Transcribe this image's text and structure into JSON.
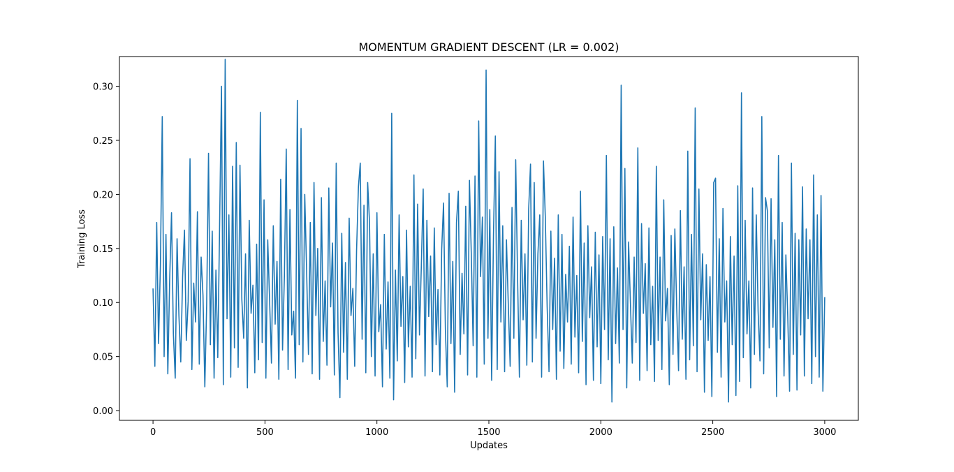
{
  "chart_data": {
    "type": "line",
    "title": "MOMENTUM GRADIENT DESCENT (LR = 0.002)",
    "xlabel": "Updates",
    "ylabel": "Training Loss",
    "xlim": [
      -150,
      3150
    ],
    "ylim": [
      -0.009,
      0.3275
    ],
    "xticks": [
      0,
      500,
      1000,
      1500,
      2000,
      2500,
      3000
    ],
    "xtick_labels": [
      "0",
      "500",
      "1000",
      "1500",
      "2000",
      "2500",
      "3000"
    ],
    "yticks": [
      0.0,
      0.05,
      0.1,
      0.15,
      0.2,
      0.25,
      0.3
    ],
    "ytick_labels": [
      "0.00",
      "0.05",
      "0.10",
      "0.15",
      "0.20",
      "0.25",
      "0.30"
    ],
    "grid": false,
    "legend": "none",
    "series": [
      {
        "color": "#1f77b4",
        "x_start": 0,
        "x_step": 10,
        "values": [
          0.113,
          0.041,
          0.174,
          0.062,
          0.135,
          0.272,
          0.05,
          0.163,
          0.034,
          0.121,
          0.183,
          0.071,
          0.03,
          0.159,
          0.088,
          0.045,
          0.124,
          0.167,
          0.065,
          0.101,
          0.233,
          0.038,
          0.118,
          0.082,
          0.184,
          0.043,
          0.142,
          0.107,
          0.022,
          0.098,
          0.238,
          0.061,
          0.166,
          0.03,
          0.13,
          0.049,
          0.173,
          0.3,
          0.024,
          0.325,
          0.085,
          0.181,
          0.031,
          0.226,
          0.058,
          0.248,
          0.04,
          0.227,
          0.103,
          0.067,
          0.145,
          0.021,
          0.176,
          0.09,
          0.116,
          0.035,
          0.154,
          0.047,
          0.276,
          0.063,
          0.195,
          0.03,
          0.158,
          0.102,
          0.044,
          0.171,
          0.08,
          0.138,
          0.029,
          0.214,
          0.056,
          0.125,
          0.242,
          0.038,
          0.186,
          0.07,
          0.092,
          0.03,
          0.287,
          0.061,
          0.261,
          0.045,
          0.2,
          0.13,
          0.052,
          0.174,
          0.034,
          0.211,
          0.088,
          0.15,
          0.029,
          0.197,
          0.064,
          0.12,
          0.042,
          0.206,
          0.096,
          0.155,
          0.033,
          0.229,
          0.072,
          0.012,
          0.164,
          0.054,
          0.137,
          0.029,
          0.178,
          0.088,
          0.113,
          0.041,
          0.148,
          0.207,
          0.229,
          0.066,
          0.19,
          0.035,
          0.211,
          0.174,
          0.05,
          0.145,
          0.032,
          0.183,
          0.073,
          0.098,
          0.022,
          0.163,
          0.057,
          0.119,
          0.03,
          0.275,
          0.01,
          0.13,
          0.046,
          0.181,
          0.078,
          0.124,
          0.026,
          0.167,
          0.059,
          0.115,
          0.031,
          0.218,
          0.048,
          0.191,
          0.07,
          0.134,
          0.205,
          0.032,
          0.176,
          0.087,
          0.143,
          0.036,
          0.169,
          0.061,
          0.112,
          0.033,
          0.149,
          0.192,
          0.075,
          0.022,
          0.201,
          0.062,
          0.138,
          0.017,
          0.174,
          0.203,
          0.052,
          0.127,
          0.071,
          0.189,
          0.033,
          0.213,
          0.145,
          0.06,
          0.217,
          0.031,
          0.268,
          0.124,
          0.179,
          0.043,
          0.315,
          0.067,
          0.186,
          0.028,
          0.163,
          0.254,
          0.038,
          0.221,
          0.082,
          0.171,
          0.036,
          0.158,
          0.098,
          0.041,
          0.188,
          0.067,
          0.232,
          0.124,
          0.031,
          0.176,
          0.084,
          0.145,
          0.042,
          0.186,
          0.228,
          0.045,
          0.211,
          0.067,
          0.145,
          0.181,
          0.031,
          0.231,
          0.179,
          0.096,
          0.036,
          0.166,
          0.075,
          0.141,
          0.029,
          0.181,
          0.055,
          0.163,
          0.039,
          0.126,
          0.082,
          0.152,
          0.043,
          0.179,
          0.068,
          0.125,
          0.035,
          0.203,
          0.064,
          0.155,
          0.024,
          0.171,
          0.086,
          0.133,
          0.028,
          0.165,
          0.059,
          0.144,
          0.025,
          0.161,
          0.075,
          0.236,
          0.047,
          0.159,
          0.008,
          0.17,
          0.062,
          0.132,
          0.044,
          0.301,
          0.075,
          0.224,
          0.021,
          0.156,
          0.099,
          0.044,
          0.142,
          0.063,
          0.243,
          0.028,
          0.173,
          0.09,
          0.136,
          0.037,
          0.169,
          0.061,
          0.115,
          0.027,
          0.226,
          0.065,
          0.142,
          0.038,
          0.195,
          0.083,
          0.113,
          0.024,
          0.162,
          0.052,
          0.168,
          0.095,
          0.037,
          0.185,
          0.066,
          0.133,
          0.029,
          0.24,
          0.047,
          0.163,
          0.06,
          0.28,
          0.036,
          0.205,
          0.084,
          0.145,
          0.017,
          0.135,
          0.065,
          0.124,
          0.013,
          0.211,
          0.215,
          0.054,
          0.159,
          0.031,
          0.187,
          0.082,
          0.12,
          0.008,
          0.161,
          0.061,
          0.143,
          0.014,
          0.208,
          0.027,
          0.294,
          0.049,
          0.176,
          0.071,
          0.12,
          0.021,
          0.206,
          0.052,
          0.181,
          0.092,
          0.046,
          0.272,
          0.034,
          0.197,
          0.185,
          0.058,
          0.196,
          0.077,
          0.158,
          0.013,
          0.236,
          0.066,
          0.174,
          0.032,
          0.144,
          0.088,
          0.018,
          0.229,
          0.052,
          0.164,
          0.019,
          0.158,
          0.07,
          0.207,
          0.032,
          0.168,
          0.085,
          0.158,
          0.025,
          0.218,
          0.05,
          0.181,
          0.031,
          0.199,
          0.018,
          0.105
        ]
      }
    ]
  }
}
